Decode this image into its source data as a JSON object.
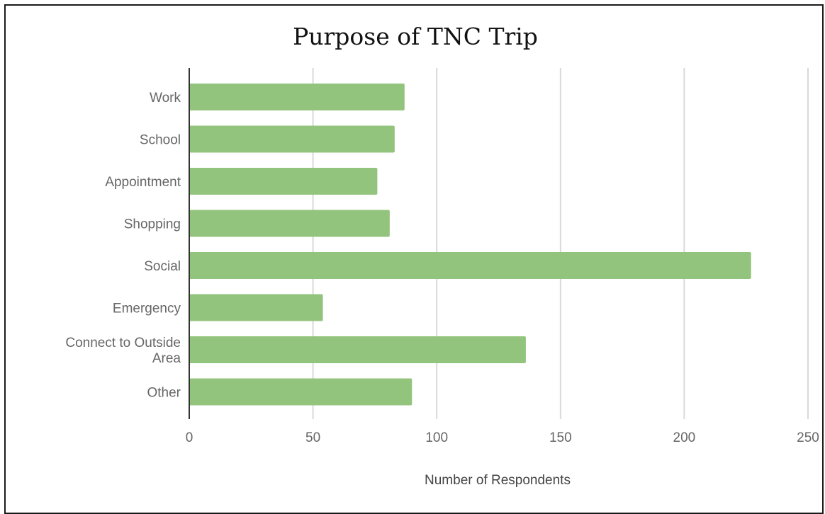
{
  "chart_data": {
    "type": "bar",
    "orientation": "horizontal",
    "title": "Purpose of TNC Trip",
    "xlabel": "Number of Respondents",
    "ylabel": "",
    "categories": [
      "Work",
      "School",
      "Appointment",
      "Shopping",
      "Social",
      "Emergency",
      [
        "Connect  to Outside",
        "Area"
      ],
      "Other"
    ],
    "values": [
      87,
      83,
      76,
      81,
      227,
      54,
      136,
      90
    ],
    "xlim": [
      0,
      250
    ],
    "xticks": [
      0,
      50,
      100,
      150,
      200,
      250
    ],
    "grid": "vertical",
    "legend": "none",
    "colors": {
      "bar": "#93c47d",
      "grid": "#d9d9d9",
      "axis": "#333333"
    }
  }
}
